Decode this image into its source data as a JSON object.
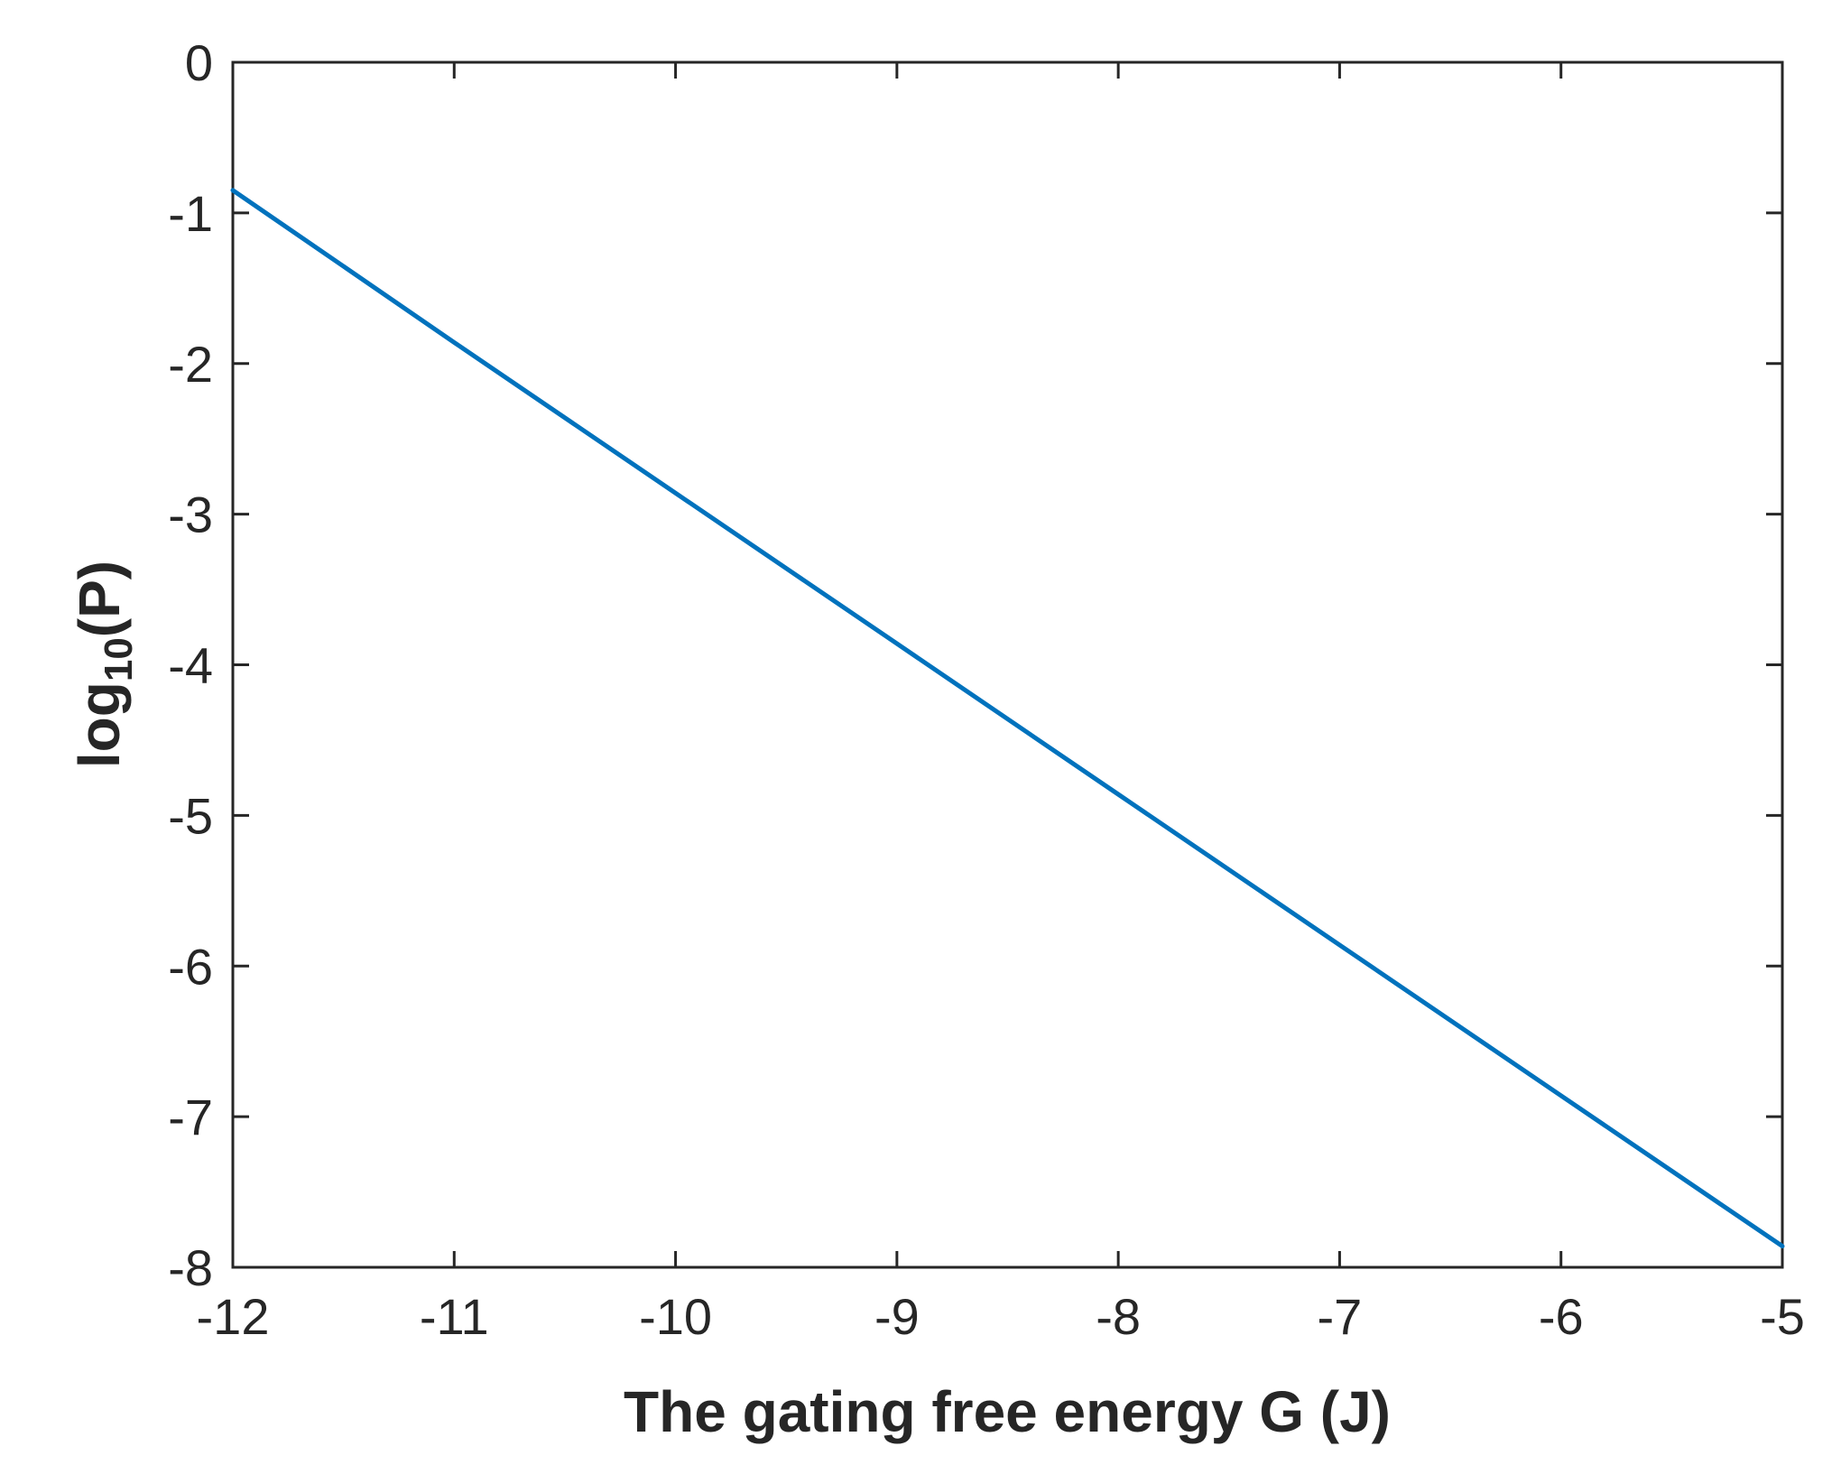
{
  "chart_data": {
    "type": "line",
    "title": "",
    "xlabel": "The gating free energy G (J)",
    "ylabel": {
      "prefix": "log",
      "subscript": "10",
      "suffix": "(P)"
    },
    "xlim": [
      -12,
      -5
    ],
    "ylim": [
      -8,
      0
    ],
    "xticks": [
      -12,
      -11,
      -10,
      -9,
      -8,
      -7,
      -6,
      -5
    ],
    "yticks": [
      0,
      -1,
      -2,
      -3,
      -4,
      -5,
      -6,
      -7,
      -8
    ],
    "grid": false,
    "legend": "none",
    "series": [
      {
        "name": "log10(P)",
        "color": "#0072BD",
        "x": [
          -12,
          -11,
          -10,
          -9,
          -8,
          -7,
          -6,
          -5
        ],
        "y": [
          -0.85,
          -1.86,
          -2.86,
          -3.86,
          -4.86,
          -5.86,
          -6.86,
          -7.86
        ]
      }
    ]
  },
  "colors": {
    "line": "#0072BD",
    "axis": "#262626"
  }
}
